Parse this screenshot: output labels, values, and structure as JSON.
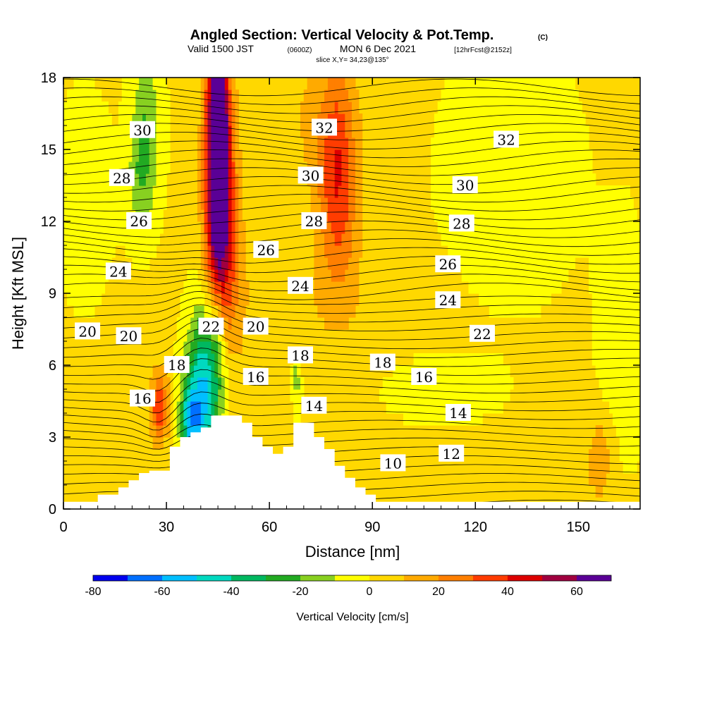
{
  "header": {
    "title": "Angled Section: Vertical Velocity & Pot.Temp.",
    "title_units": "(C)",
    "valid_prefix": "Valid 1500 JST",
    "valid_utc": "(0600Z)",
    "valid_date": "MON 6 Dec 2021",
    "forecast": "[12hrFcst@2152z]",
    "slice": "slice X,Y= 34,23@135°"
  },
  "chart_data": {
    "type": "heatmap",
    "xlabel": "Distance [nm]",
    "ylabel": "Height [Kft MSL]",
    "xlim": [
      0,
      168
    ],
    "ylim": [
      0,
      18
    ],
    "x_ticks": [
      "0",
      "30",
      "60",
      "90",
      "120",
      "150"
    ],
    "y_ticks": [
      "0",
      "3",
      "6",
      "9",
      "12",
      "15",
      "18"
    ],
    "colorbar": {
      "label": "Vertical Velocity [cm/s]",
      "ticks": [
        "-80",
        "-60",
        "-40",
        "-20",
        "0",
        "20",
        "40",
        "60"
      ],
      "bins": [
        -80,
        -70,
        -60,
        -50,
        -40,
        -30,
        -20,
        -10,
        0,
        10,
        20,
        30,
        40,
        50,
        60,
        70
      ],
      "colors": [
        "#0000ee",
        "#0070ff",
        "#00bfff",
        "#00d9c0",
        "#00b860",
        "#22aa22",
        "#88d020",
        "#ffff00",
        "#ffd800",
        "#ffaa00",
        "#ff7f00",
        "#ff3c00",
        "#dd0000",
        "#a00040",
        "#5a0096"
      ]
    },
    "theta_labels": [
      {
        "text": "30",
        "x": 23,
        "y": 15.8
      },
      {
        "text": "28",
        "x": 17,
        "y": 13.8
      },
      {
        "text": "26",
        "x": 22,
        "y": 12.0
      },
      {
        "text": "24",
        "x": 16,
        "y": 9.9
      },
      {
        "text": "20",
        "x": 7,
        "y": 7.4
      },
      {
        "text": "20",
        "x": 19,
        "y": 7.2
      },
      {
        "text": "18",
        "x": 33,
        "y": 6.0
      },
      {
        "text": "16",
        "x": 23,
        "y": 4.6
      },
      {
        "text": "22",
        "x": 43,
        "y": 7.6
      },
      {
        "text": "20",
        "x": 56,
        "y": 7.6
      },
      {
        "text": "16",
        "x": 56,
        "y": 5.5
      },
      {
        "text": "26",
        "x": 59,
        "y": 10.8
      },
      {
        "text": "24",
        "x": 69,
        "y": 9.3
      },
      {
        "text": "18",
        "x": 69,
        "y": 6.4
      },
      {
        "text": "14",
        "x": 73,
        "y": 4.3
      },
      {
        "text": "32",
        "x": 76,
        "y": 15.9
      },
      {
        "text": "30",
        "x": 72,
        "y": 13.9
      },
      {
        "text": "28",
        "x": 73,
        "y": 12.0
      },
      {
        "text": "18",
        "x": 93,
        "y": 6.1
      },
      {
        "text": "10",
        "x": 96,
        "y": 1.9
      },
      {
        "text": "16",
        "x": 105,
        "y": 5.5
      },
      {
        "text": "32",
        "x": 129,
        "y": 15.4
      },
      {
        "text": "30",
        "x": 117,
        "y": 13.5
      },
      {
        "text": "28",
        "x": 116,
        "y": 11.9
      },
      {
        "text": "26",
        "x": 112,
        "y": 10.2
      },
      {
        "text": "24",
        "x": 112,
        "y": 8.7
      },
      {
        "text": "22",
        "x": 122,
        "y": 7.3
      },
      {
        "text": "14",
        "x": 115,
        "y": 4.0
      },
      {
        "text": "12",
        "x": 113,
        "y": 2.3
      }
    ],
    "terrain": [
      [
        0,
        0.3
      ],
      [
        10,
        0.3
      ],
      [
        10,
        0.6
      ],
      [
        16,
        0.6
      ],
      [
        16,
        0.9
      ],
      [
        19,
        0.9
      ],
      [
        19,
        1.2
      ],
      [
        22,
        1.2
      ],
      [
        22,
        1.5
      ],
      [
        25,
        1.5
      ],
      [
        25,
        1.6
      ],
      [
        31,
        1.6
      ],
      [
        31,
        2.6
      ],
      [
        34,
        2.6
      ],
      [
        34,
        3.0
      ],
      [
        37,
        3.0
      ],
      [
        37,
        3.2
      ],
      [
        40,
        3.2
      ],
      [
        40,
        3.4
      ],
      [
        43,
        3.4
      ],
      [
        43,
        3.9
      ],
      [
        52,
        3.9
      ],
      [
        52,
        3.6
      ],
      [
        55,
        3.6
      ],
      [
        55,
        3.0
      ],
      [
        58,
        3.0
      ],
      [
        58,
        2.6
      ],
      [
        61,
        2.6
      ],
      [
        61,
        2.3
      ],
      [
        64,
        2.3
      ],
      [
        64,
        2.6
      ],
      [
        67,
        2.6
      ],
      [
        67,
        3.6
      ],
      [
        73,
        3.6
      ],
      [
        73,
        3.0
      ],
      [
        76,
        3.0
      ],
      [
        76,
        2.5
      ],
      [
        79,
        2.5
      ],
      [
        79,
        1.8
      ],
      [
        82,
        1.8
      ],
      [
        82,
        1.3
      ],
      [
        85,
        1.3
      ],
      [
        85,
        0.9
      ],
      [
        88,
        0.9
      ],
      [
        88,
        0.6
      ],
      [
        91,
        0.6
      ],
      [
        91,
        0.3
      ],
      [
        168,
        0.3
      ]
    ]
  }
}
